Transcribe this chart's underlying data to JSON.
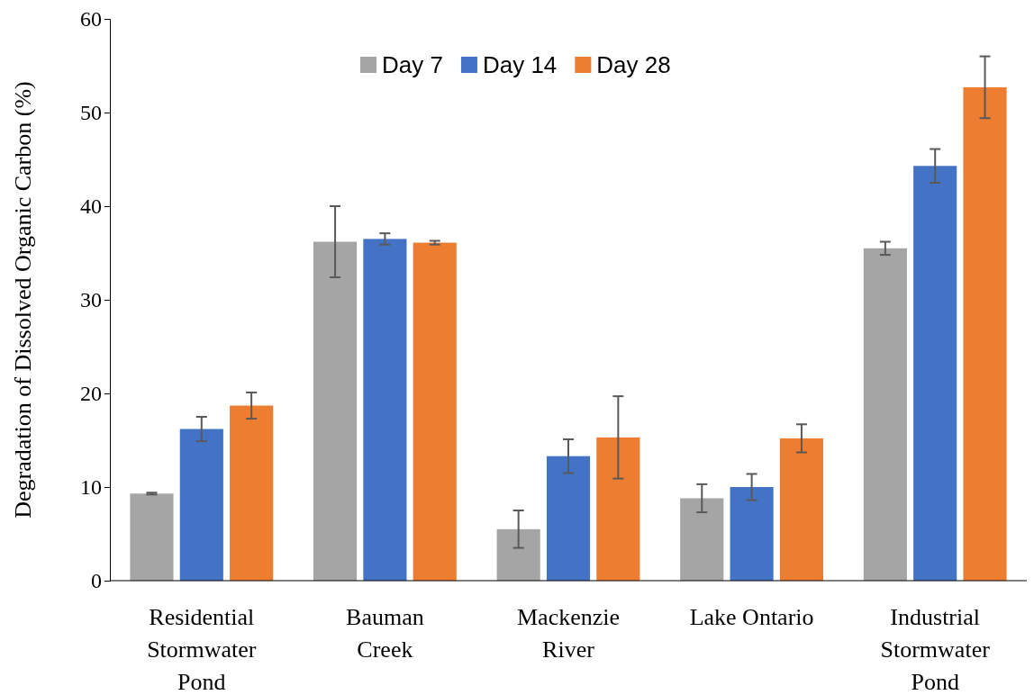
{
  "chart_data": {
    "type": "bar",
    "ylabel": "Degradation of Dissolved Organic Carbon (%)",
    "categories": [
      "Residential Stormwater Pond",
      "Bauman Creek",
      "Mackenzie River",
      "Lake Ontario",
      "Industrial Stormwater Pond"
    ],
    "series": [
      {
        "name": "Day 7",
        "color": "#a5a5a5",
        "values": [
          9.3,
          36.2,
          5.5,
          8.8,
          35.5
        ],
        "errors": [
          0.1,
          3.8,
          2.0,
          1.5,
          0.7
        ]
      },
      {
        "name": "Day 14",
        "color": "#4472c4",
        "values": [
          16.2,
          36.5,
          13.3,
          10.0,
          44.3
        ],
        "errors": [
          1.3,
          0.6,
          1.8,
          1.4,
          1.8
        ]
      },
      {
        "name": "Day 28",
        "color": "#ed7d31",
        "values": [
          18.7,
          36.1,
          15.3,
          15.2,
          52.7
        ],
        "errors": [
          1.4,
          0.2,
          4.4,
          1.5,
          3.3
        ]
      }
    ],
    "ylim": [
      0,
      60
    ],
    "yticks": [
      0,
      10,
      20,
      30,
      40,
      50,
      60
    ],
    "grid": false,
    "legend": "top"
  }
}
